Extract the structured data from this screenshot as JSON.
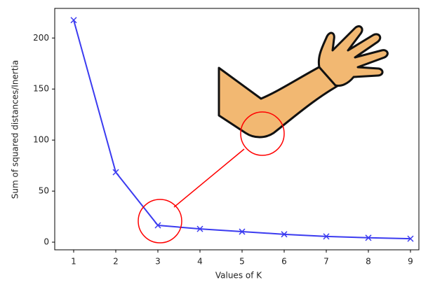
{
  "chart_data": {
    "type": "line",
    "xlabel": "Values of K",
    "ylabel": "Sum of squared distances/Inertia",
    "x": [
      1,
      2,
      3,
      4,
      5,
      6,
      7,
      8,
      9
    ],
    "values": [
      217.5,
      68.5,
      16.5,
      13,
      10.3,
      7.7,
      5.6,
      4.3,
      3.4
    ],
    "color": "#3b3bf0",
    "marker": "x",
    "xlim": [
      0.55,
      9.2
    ],
    "xticks": [
      1,
      2,
      3,
      4,
      5,
      6,
      7,
      8,
      9
    ],
    "ylim": [
      -7.5,
      229
    ],
    "yticks": [
      0,
      50,
      100,
      150,
      200
    ]
  }
}
